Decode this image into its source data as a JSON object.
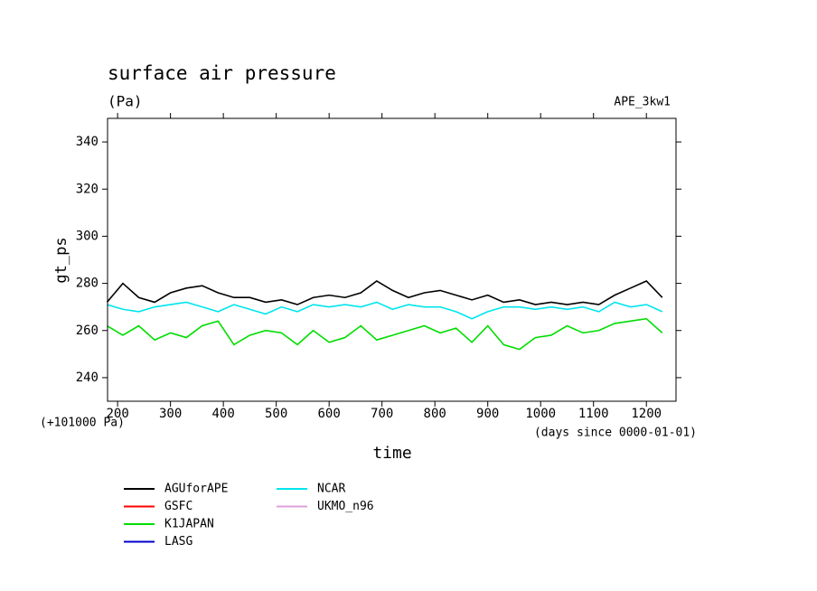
{
  "chart_data": {
    "type": "line",
    "title": "surface air pressure",
    "subtitle": "(Pa)",
    "annotation": "APE_3kw1",
    "ylabel": "gt_ps",
    "xlabel": "time",
    "y_offset_label": "(+101000 Pa)",
    "x_unit_label": "(days since 0000-01-01)",
    "x": [
      180,
      210,
      240,
      270,
      300,
      330,
      360,
      390,
      420,
      450,
      480,
      510,
      540,
      570,
      600,
      630,
      660,
      690,
      720,
      750,
      780,
      810,
      840,
      870,
      900,
      930,
      960,
      990,
      1020,
      1050,
      1080,
      1110,
      1140,
      1170,
      1200,
      1230
    ],
    "series": [
      {
        "name": "AGUforAPE",
        "color": "#000000",
        "values": [
          272,
          280,
          274,
          272,
          276,
          278,
          279,
          276,
          274,
          274,
          272,
          273,
          271,
          274,
          275,
          274,
          276,
          281,
          277,
          274,
          276,
          277,
          275,
          273,
          275,
          272,
          273,
          271,
          272,
          271,
          272,
          271,
          275,
          278,
          281,
          274
        ]
      },
      {
        "name": "GSFC",
        "color": "#ff0000",
        "values": [
          null,
          null,
          null,
          null,
          null,
          null,
          null,
          null,
          null,
          null,
          null,
          null,
          null,
          null,
          null,
          null,
          null,
          null,
          null,
          null,
          null,
          null,
          null,
          null,
          null,
          null,
          null,
          null,
          null,
          null,
          null,
          null,
          null,
          null,
          null,
          null
        ]
      },
      {
        "name": "K1JAPAN",
        "color": "#00dd00",
        "values": [
          262,
          258,
          262,
          256,
          259,
          257,
          262,
          264,
          254,
          258,
          260,
          259,
          254,
          260,
          255,
          257,
          262,
          256,
          258,
          260,
          262,
          259,
          261,
          255,
          262,
          254,
          252,
          257,
          258,
          262,
          259,
          260,
          263,
          264,
          265,
          259
        ]
      },
      {
        "name": "LASG",
        "color": "#0000cc",
        "values": [
          null,
          null,
          null,
          null,
          null,
          null,
          null,
          null,
          null,
          null,
          null,
          null,
          null,
          null,
          null,
          null,
          null,
          null,
          null,
          null,
          null,
          null,
          null,
          null,
          null,
          null,
          null,
          null,
          null,
          null,
          null,
          null,
          null,
          null,
          null,
          null
        ]
      },
      {
        "name": "NCAR",
        "color": "#00e5ee",
        "values": [
          271,
          269,
          268,
          270,
          271,
          272,
          270,
          268,
          271,
          269,
          267,
          270,
          268,
          271,
          270,
          271,
          270,
          272,
          269,
          271,
          270,
          270,
          268,
          265,
          268,
          270,
          270,
          269,
          270,
          269,
          270,
          268,
          272,
          270,
          271,
          268
        ]
      },
      {
        "name": "UKMO_n96",
        "color": "#dda0dd",
        "values": [
          null,
          null,
          null,
          null,
          null,
          null,
          null,
          null,
          null,
          null,
          null,
          null,
          null,
          null,
          null,
          null,
          null,
          null,
          null,
          null,
          null,
          null,
          null,
          null,
          null,
          null,
          null,
          null,
          null,
          null,
          null,
          null,
          null,
          null,
          null,
          null
        ]
      }
    ],
    "xlim": [
      181,
      1256
    ],
    "ylim": [
      230,
      350
    ],
    "xticks": [
      200,
      300,
      400,
      500,
      600,
      700,
      800,
      900,
      1000,
      1100,
      1200
    ],
    "yticks": [
      240,
      260,
      280,
      300,
      320,
      340
    ]
  }
}
